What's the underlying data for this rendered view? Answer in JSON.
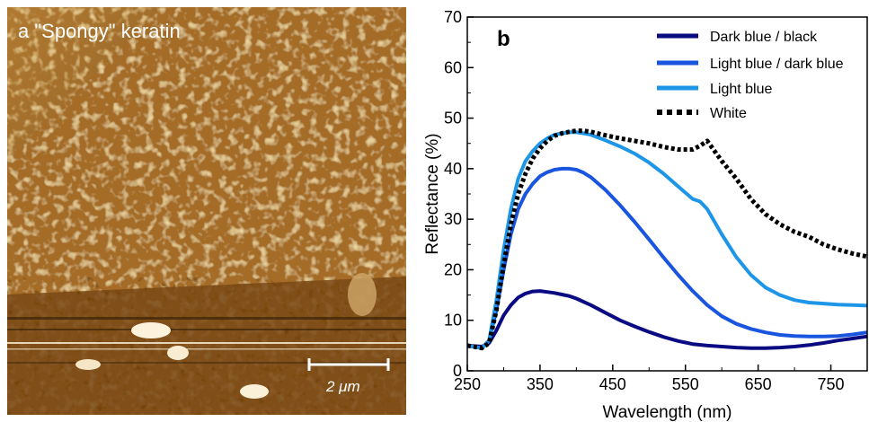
{
  "panel_a": {
    "label": "a \"Spongy\" keratin",
    "scale_bar": "2 μm"
  },
  "chart_data": {
    "type": "line",
    "panel_label": "b",
    "xlabel": "Wavelength (nm)",
    "ylabel": "Reflectance (%)",
    "xlim": [
      250,
      800
    ],
    "ylim": [
      0,
      70
    ],
    "xticks": [
      250,
      350,
      450,
      550,
      650,
      750
    ],
    "yticks": [
      0,
      10,
      20,
      30,
      40,
      50,
      60,
      70
    ],
    "grid": false,
    "legend": "top-right",
    "series": [
      {
        "name": "Dark blue / black",
        "color": "#0a0a82",
        "style": "solid",
        "x": [
          250,
          270,
          280,
          290,
          300,
          310,
          320,
          330,
          340,
          350,
          360,
          370,
          380,
          390,
          400,
          420,
          440,
          460,
          480,
          500,
          520,
          540,
          560,
          580,
          600,
          620,
          640,
          660,
          680,
          700,
          720,
          740,
          760,
          780,
          800
        ],
        "y": [
          5,
          4.8,
          5.5,
          8,
          11,
          13,
          14.5,
          15.3,
          15.7,
          15.8,
          15.6,
          15.4,
          15.1,
          14.8,
          14.3,
          13,
          11.5,
          10,
          8.8,
          7.7,
          6.7,
          5.9,
          5.3,
          5,
          4.8,
          4.6,
          4.5,
          4.5,
          4.6,
          4.8,
          5.1,
          5.5,
          6,
          6.4,
          6.8
        ]
      },
      {
        "name": "Light blue / dark blue",
        "color": "#1a55e0",
        "style": "solid",
        "x": [
          250,
          270,
          280,
          290,
          300,
          310,
          320,
          330,
          340,
          350,
          360,
          370,
          380,
          390,
          400,
          410,
          420,
          440,
          460,
          480,
          500,
          520,
          540,
          560,
          580,
          600,
          620,
          640,
          660,
          680,
          700,
          720,
          740,
          760,
          780,
          800
        ],
        "y": [
          5,
          4.5,
          6,
          12,
          20,
          27,
          32,
          35,
          37,
          38.5,
          39.3,
          39.8,
          40,
          40,
          39.8,
          39.2,
          38.3,
          35.8,
          32.8,
          29.5,
          26,
          22.4,
          19,
          15.8,
          13,
          10.8,
          9.3,
          8.3,
          7.6,
          7.1,
          6.9,
          6.8,
          6.8,
          6.9,
          7.2,
          7.6
        ]
      },
      {
        "name": "Light blue",
        "color": "#1e96e8",
        "style": "solid",
        "x": [
          250,
          270,
          280,
          290,
          300,
          310,
          320,
          330,
          340,
          350,
          360,
          370,
          380,
          390,
          400,
          410,
          420,
          440,
          460,
          480,
          500,
          520,
          540,
          560,
          570,
          580,
          600,
          620,
          640,
          660,
          680,
          700,
          720,
          740,
          760,
          780,
          800
        ],
        "y": [
          5,
          4.5,
          6,
          14,
          24,
          32,
          38,
          41.5,
          43.5,
          45,
          46,
          46.7,
          47,
          47.2,
          47.2,
          47,
          46.7,
          45.6,
          44.4,
          43,
          41.2,
          39,
          36.5,
          34,
          33.5,
          32,
          27,
          22.5,
          19,
          16.5,
          15,
          14,
          13.5,
          13.3,
          13.1,
          13,
          12.9
        ]
      },
      {
        "name": "White",
        "color": "#000000",
        "style": "dotted",
        "x": [
          250,
          270,
          280,
          290,
          300,
          310,
          320,
          330,
          340,
          350,
          360,
          370,
          380,
          390,
          400,
          410,
          420,
          440,
          460,
          480,
          500,
          520,
          540,
          560,
          570,
          580,
          590,
          600,
          620,
          640,
          660,
          680,
          700,
          720,
          740,
          760,
          780,
          800
        ],
        "y": [
          5,
          4.5,
          5.5,
          12,
          21,
          29,
          35,
          39,
          42,
          44,
          45.5,
          46.5,
          47,
          47.3,
          47.5,
          47.5,
          47.3,
          46.6,
          46,
          45.5,
          45,
          44.3,
          43.8,
          43.8,
          44.5,
          45.5,
          43.5,
          41.5,
          38,
          34,
          31,
          29,
          27.5,
          26.5,
          25,
          24,
          23.2,
          22.6
        ]
      }
    ]
  }
}
